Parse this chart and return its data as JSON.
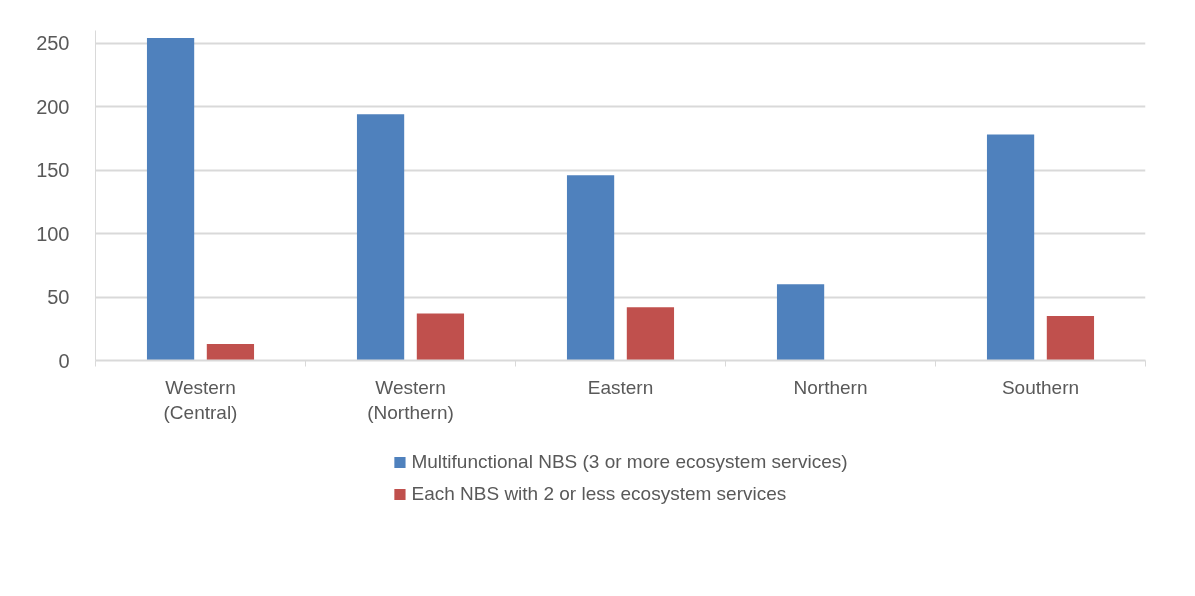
{
  "chart_data": {
    "type": "bar",
    "categories": [
      "Western (Central)",
      "Western (Northern)",
      "Eastern",
      "Northern",
      "Southern"
    ],
    "series": [
      {
        "name": "Multifunctional NBS (3 or more ecosystem services)",
        "color": "#4f81bd",
        "values": [
          254,
          194,
          146,
          60,
          178
        ]
      },
      {
        "name": "Each NBS with 2 or less ecosystem services",
        "color": "#c0504d",
        "values": [
          13,
          37,
          42,
          0,
          35
        ]
      }
    ],
    "ylim": [
      0,
      260
    ],
    "yticks": [
      0,
      50,
      100,
      150,
      200,
      250
    ],
    "grid": "y",
    "legend": "bottom"
  }
}
